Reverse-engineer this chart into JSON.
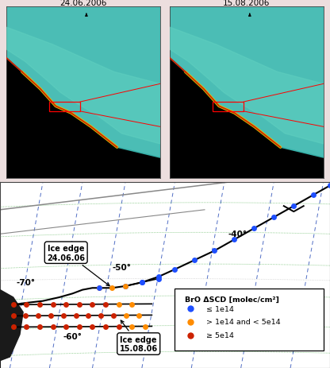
{
  "title_left": "24.06.2006",
  "title_right": "15.08.2006",
  "legend_title": "BrO ΔSCD [molec/cm²]",
  "legend_entries": [
    {
      "label": "≤ 1e14",
      "color": "#1e4fff"
    },
    {
      "label": "> 1e14 and < 5e14",
      "color": "#ff8c00"
    },
    {
      "label": "≥ 5e14",
      "color": "#cc2200"
    }
  ],
  "dot_colors": {
    "blue": "#1e4fff",
    "orange": "#ff8c00",
    "red": "#cc2200"
  },
  "grid_color_blue": "#3355bb",
  "grid_color_green": "#44aa44",
  "track_line_color": "#000000",
  "dot_size": 5,
  "border_color": "#444444",
  "top_bg": "#ecdede",
  "panel_bg": "#f5eaea"
}
